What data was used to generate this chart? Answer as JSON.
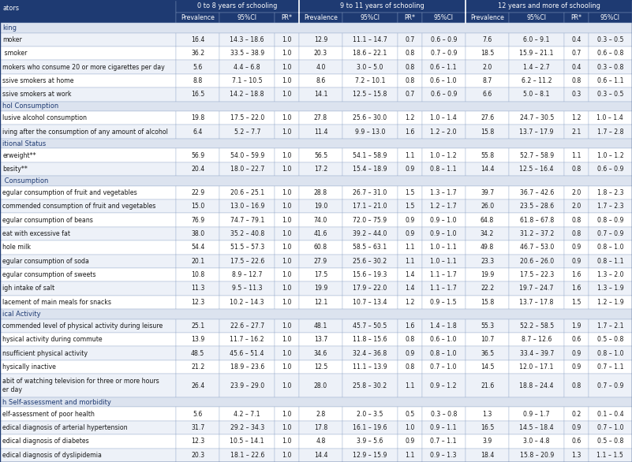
{
  "header_groups": [
    "0 to 8 years of schooling",
    "9 to 11 years of schooling",
    "12 years and more of schooling"
  ],
  "sub_headers": [
    "Prevalence",
    "95%CI",
    "PR*",
    "Prevalence",
    "95%CI",
    "PR*",
    "95%CI",
    "Prevalence",
    "95%CI",
    "PR*",
    "95%CI"
  ],
  "row_label_header": "ators",
  "section_rows": [
    {
      "label": "king",
      "is_section": true
    },
    {
      "label": "moker",
      "is_section": false,
      "vals": [
        "16.4",
        "14.3 – 18.6",
        "1.0",
        "12.9",
        "11.1 – 14.7",
        "0.7",
        "0.6 – 0.9",
        "7.6",
        "6.0 – 9.1",
        "0.4",
        "0.3 – 0.5"
      ]
    },
    {
      "label": " smoker",
      "is_section": false,
      "vals": [
        "36.2",
        "33.5 – 38.9",
        "1.0",
        "20.3",
        "18.6 – 22.1",
        "0.8",
        "0.7 – 0.9",
        "18.5",
        "15.9 – 21.1",
        "0.7",
        "0.6 – 0.8"
      ]
    },
    {
      "label": "mokers who consume 20 or more cigarettes per day",
      "is_section": false,
      "vals": [
        "5.6",
        "4.4 – 6.8",
        "1.0",
        "4.0",
        "3.0 – 5.0",
        "0.8",
        "0.6 – 1.1",
        "2.0",
        "1.4 – 2.7",
        "0.4",
        "0.3 – 0.8"
      ]
    },
    {
      "label": "ssive smokers at home",
      "is_section": false,
      "vals": [
        "8.8",
        "7.1 – 10.5",
        "1.0",
        "8.6",
        "7.2 – 10.1",
        "0.8",
        "0.6 – 1.0",
        "8.7",
        "6.2 – 11.2",
        "0.8",
        "0.6 – 1.1"
      ]
    },
    {
      "label": "ssive smokers at work",
      "is_section": false,
      "vals": [
        "16.5",
        "14.2 – 18.8",
        "1.0",
        "14.1",
        "12.5 – 15.8",
        "0.7",
        "0.6 – 0.9",
        "6.6",
        "5.0 – 8.1",
        "0.3",
        "0.3 – 0.5"
      ]
    },
    {
      "label": "hol Consumption",
      "is_section": true
    },
    {
      "label": "lusive alcohol consumption",
      "is_section": false,
      "vals": [
        "19.8",
        "17.5 – 22.0",
        "1.0",
        "27.8",
        "25.6 – 30.0",
        "1.2",
        "1.0 – 1.4",
        "27.6",
        "24.7 – 30.5",
        "1.2",
        "1.0 – 1.4"
      ]
    },
    {
      "label": "iving after the consumption of any amount of alcohol",
      "is_section": false,
      "vals": [
        "6.4",
        "5.2 – 7.7",
        "1.0",
        "11.4",
        "9.9 – 13.0",
        "1.6",
        "1.2 – 2.0",
        "15.8",
        "13.7 – 17.9",
        "2.1",
        "1.7 – 2.8"
      ]
    },
    {
      "label": "itional Status",
      "is_section": true
    },
    {
      "label": "erweight**",
      "is_section": false,
      "vals": [
        "56.9",
        "54.0 – 59.9",
        "1.0",
        "56.5",
        "54.1 – 58.9",
        "1.1",
        "1.0 – 1.2",
        "55.8",
        "52.7 – 58.9",
        "1.1",
        "1.0 – 1.2"
      ]
    },
    {
      "label": "besity**",
      "is_section": false,
      "vals": [
        "20.4",
        "18.0 – 22.7",
        "1.0",
        "17.2",
        "15.4 – 18.9",
        "0.9",
        "0.8 – 1.1",
        "14.4",
        "12.5 – 16.4",
        "0.8",
        "0.6 – 0.9"
      ]
    },
    {
      "label": " Consumption",
      "is_section": true
    },
    {
      "label": "egular consumption of fruit and vegetables",
      "is_section": false,
      "vals": [
        "22.9",
        "20.6 – 25.1",
        "1.0",
        "28.8",
        "26.7 – 31.0",
        "1.5",
        "1.3 – 1.7",
        "39.7",
        "36.7 – 42.6",
        "2.0",
        "1.8 – 2.3"
      ]
    },
    {
      "label": "commended consumption of fruit and vegetables",
      "is_section": false,
      "vals": [
        "15.0",
        "13.0 – 16.9",
        "1.0",
        "19.0",
        "17.1 – 21.0",
        "1.5",
        "1.2 – 1.7",
        "26.0",
        "23.5 – 28.6",
        "2.0",
        "1.7 – 2.3"
      ]
    },
    {
      "label": "egular consumption of beans",
      "is_section": false,
      "vals": [
        "76.9",
        "74.7 – 79.1",
        "1.0",
        "74.0",
        "72.0 – 75.9",
        "0.9",
        "0.9 – 1.0",
        "64.8",
        "61.8 – 67.8",
        "0.8",
        "0.8 – 0.9"
      ]
    },
    {
      "label": "eat with excessive fat",
      "is_section": false,
      "vals": [
        "38.0",
        "35.2 – 40.8",
        "1.0",
        "41.6",
        "39.2 – 44.0",
        "0.9",
        "0.9 – 1.0",
        "34.2",
        "31.2 – 37.2",
        "0.8",
        "0.7 – 0.9"
      ]
    },
    {
      "label": "hole milk",
      "is_section": false,
      "vals": [
        "54.4",
        "51.5 – 57.3",
        "1.0",
        "60.8",
        "58.5 – 63.1",
        "1.1",
        "1.0 – 1.1",
        "49.8",
        "46.7 – 53.0",
        "0.9",
        "0.8 – 1.0"
      ]
    },
    {
      "label": "egular consumption of soda",
      "is_section": false,
      "vals": [
        "20.1",
        "17.5 – 22.6",
        "1.0",
        "27.9",
        "25.6 – 30.2",
        "1.1",
        "1.0 – 1.1",
        "23.3",
        "20.6 – 26.0",
        "0.9",
        "0.8 – 1.1"
      ]
    },
    {
      "label": "egular consumption of sweets",
      "is_section": false,
      "vals": [
        "10.8",
        "8.9 – 12.7",
        "1.0",
        "17.5",
        "15.6 – 19.3",
        "1.4",
        "1.1 – 1.7",
        "19.9",
        "17.5 – 22.3",
        "1.6",
        "1.3 – 2.0"
      ]
    },
    {
      "label": "igh intake of salt",
      "is_section": false,
      "vals": [
        "11.3",
        "9.5 – 11.3",
        "1.0",
        "19.9",
        "17.9 – 22.0",
        "1.4",
        "1.1 – 1.7",
        "22.2",
        "19.7 – 24.7",
        "1.6",
        "1.3 – 1.9"
      ]
    },
    {
      "label": "lacement of main meals for snacks",
      "is_section": false,
      "vals": [
        "12.3",
        "10.2 – 14.3",
        "1.0",
        "12.1",
        "10.7 – 13.4",
        "1.2",
        "0.9 – 1.5",
        "15.8",
        "13.7 – 17.8",
        "1.5",
        "1.2 – 1.9"
      ]
    },
    {
      "label": "ical Activity",
      "is_section": true
    },
    {
      "label": "commended level of physical activity during leisure",
      "is_section": false,
      "vals": [
        "25.1",
        "22.6 – 27.7",
        "1.0",
        "48.1",
        "45.7 – 50.5",
        "1.6",
        "1.4 – 1.8",
        "55.3",
        "52.2 – 58.5",
        "1.9",
        "1.7 – 2.1"
      ]
    },
    {
      "label": "hysical activity during commute",
      "is_section": false,
      "vals": [
        "13.9",
        "11.7 – 16.2",
        "1.0",
        "13.7",
        "11.8 – 15.6",
        "0.8",
        "0.6 – 1.0",
        "10.7",
        "8.7 – 12.6",
        "0.6",
        "0.5 – 0.8"
      ]
    },
    {
      "label": "nsufficient physical activity",
      "is_section": false,
      "vals": [
        "48.5",
        "45.6 – 51.4",
        "1.0",
        "34.6",
        "32.4 – 36.8",
        "0.9",
        "0.8 – 1.0",
        "36.5",
        "33.4 – 39.7",
        "0.9",
        "0.8 – 1.0"
      ]
    },
    {
      "label": "hysically inactive",
      "is_section": false,
      "vals": [
        "21.2",
        "18.9 – 23.6",
        "1.0",
        "12.5",
        "11.1 – 13.9",
        "0.8",
        "0.7 – 1.0",
        "14.5",
        "12.0 – 17.1",
        "0.9",
        "0.7 – 1.1"
      ]
    },
    {
      "label": "abit of watching television for three or more hours\ner day",
      "is_section": false,
      "vals": [
        "26.4",
        "23.9 – 29.0",
        "1.0",
        "28.0",
        "25.8 – 30.2",
        "1.1",
        "0.9 – 1.2",
        "21.6",
        "18.8 – 24.4",
        "0.8",
        "0.7 – 0.9"
      ]
    },
    {
      "label": "h Self-assessment and morbidity",
      "is_section": true
    },
    {
      "label": "elf-assessment of poor health",
      "is_section": false,
      "vals": [
        "5.6",
        "4.2 – 7.1",
        "1.0",
        "2.8",
        "2.0 – 3.5",
        "0.5",
        "0.3 – 0.8",
        "1.3",
        "0.9 – 1.7",
        "0.2",
        "0.1 – 0.4"
      ]
    },
    {
      "label": "edical diagnosis of arterial hypertension",
      "is_section": false,
      "vals": [
        "31.7",
        "29.2 – 34.3",
        "1.0",
        "17.8",
        "16.1 – 19.6",
        "1.0",
        "0.9 – 1.1",
        "16.5",
        "14.5 – 18.4",
        "0.9",
        "0.7 – 1.0"
      ]
    },
    {
      "label": "edical diagnosis of diabetes",
      "is_section": false,
      "vals": [
        "12.3",
        "10.5 – 14.1",
        "1.0",
        "4.8",
        "3.9 – 5.6",
        "0.9",
        "0.7 – 1.1",
        "3.9",
        "3.0 – 4.8",
        "0.6",
        "0.5 – 0.8"
      ]
    },
    {
      "label": "edical diagnosis of dyslipidemia",
      "is_section": false,
      "vals": [
        "20.3",
        "18.1 – 22.6",
        "1.0",
        "14.4",
        "12.9 – 15.9",
        "1.1",
        "0.9 – 1.3",
        "18.4",
        "15.8 – 20.9",
        "1.3",
        "1.1 – 1.5"
      ]
    }
  ],
  "header_bg": "#1e3a72",
  "header_fg": "#ffffff",
  "section_bg": "#dce3ef",
  "section_fg": "#1e3a72",
  "row_bg_odd": "#edf1f8",
  "row_bg_even": "#ffffff",
  "data_fg": "#1a1a1a",
  "grid_color": "#8fa5c8",
  "group_border_color": "#ffffff",
  "font_size": 5.8,
  "header_font_size": 5.9,
  "section_font_size": 6.0,
  "fig_bg": "#ffffff"
}
